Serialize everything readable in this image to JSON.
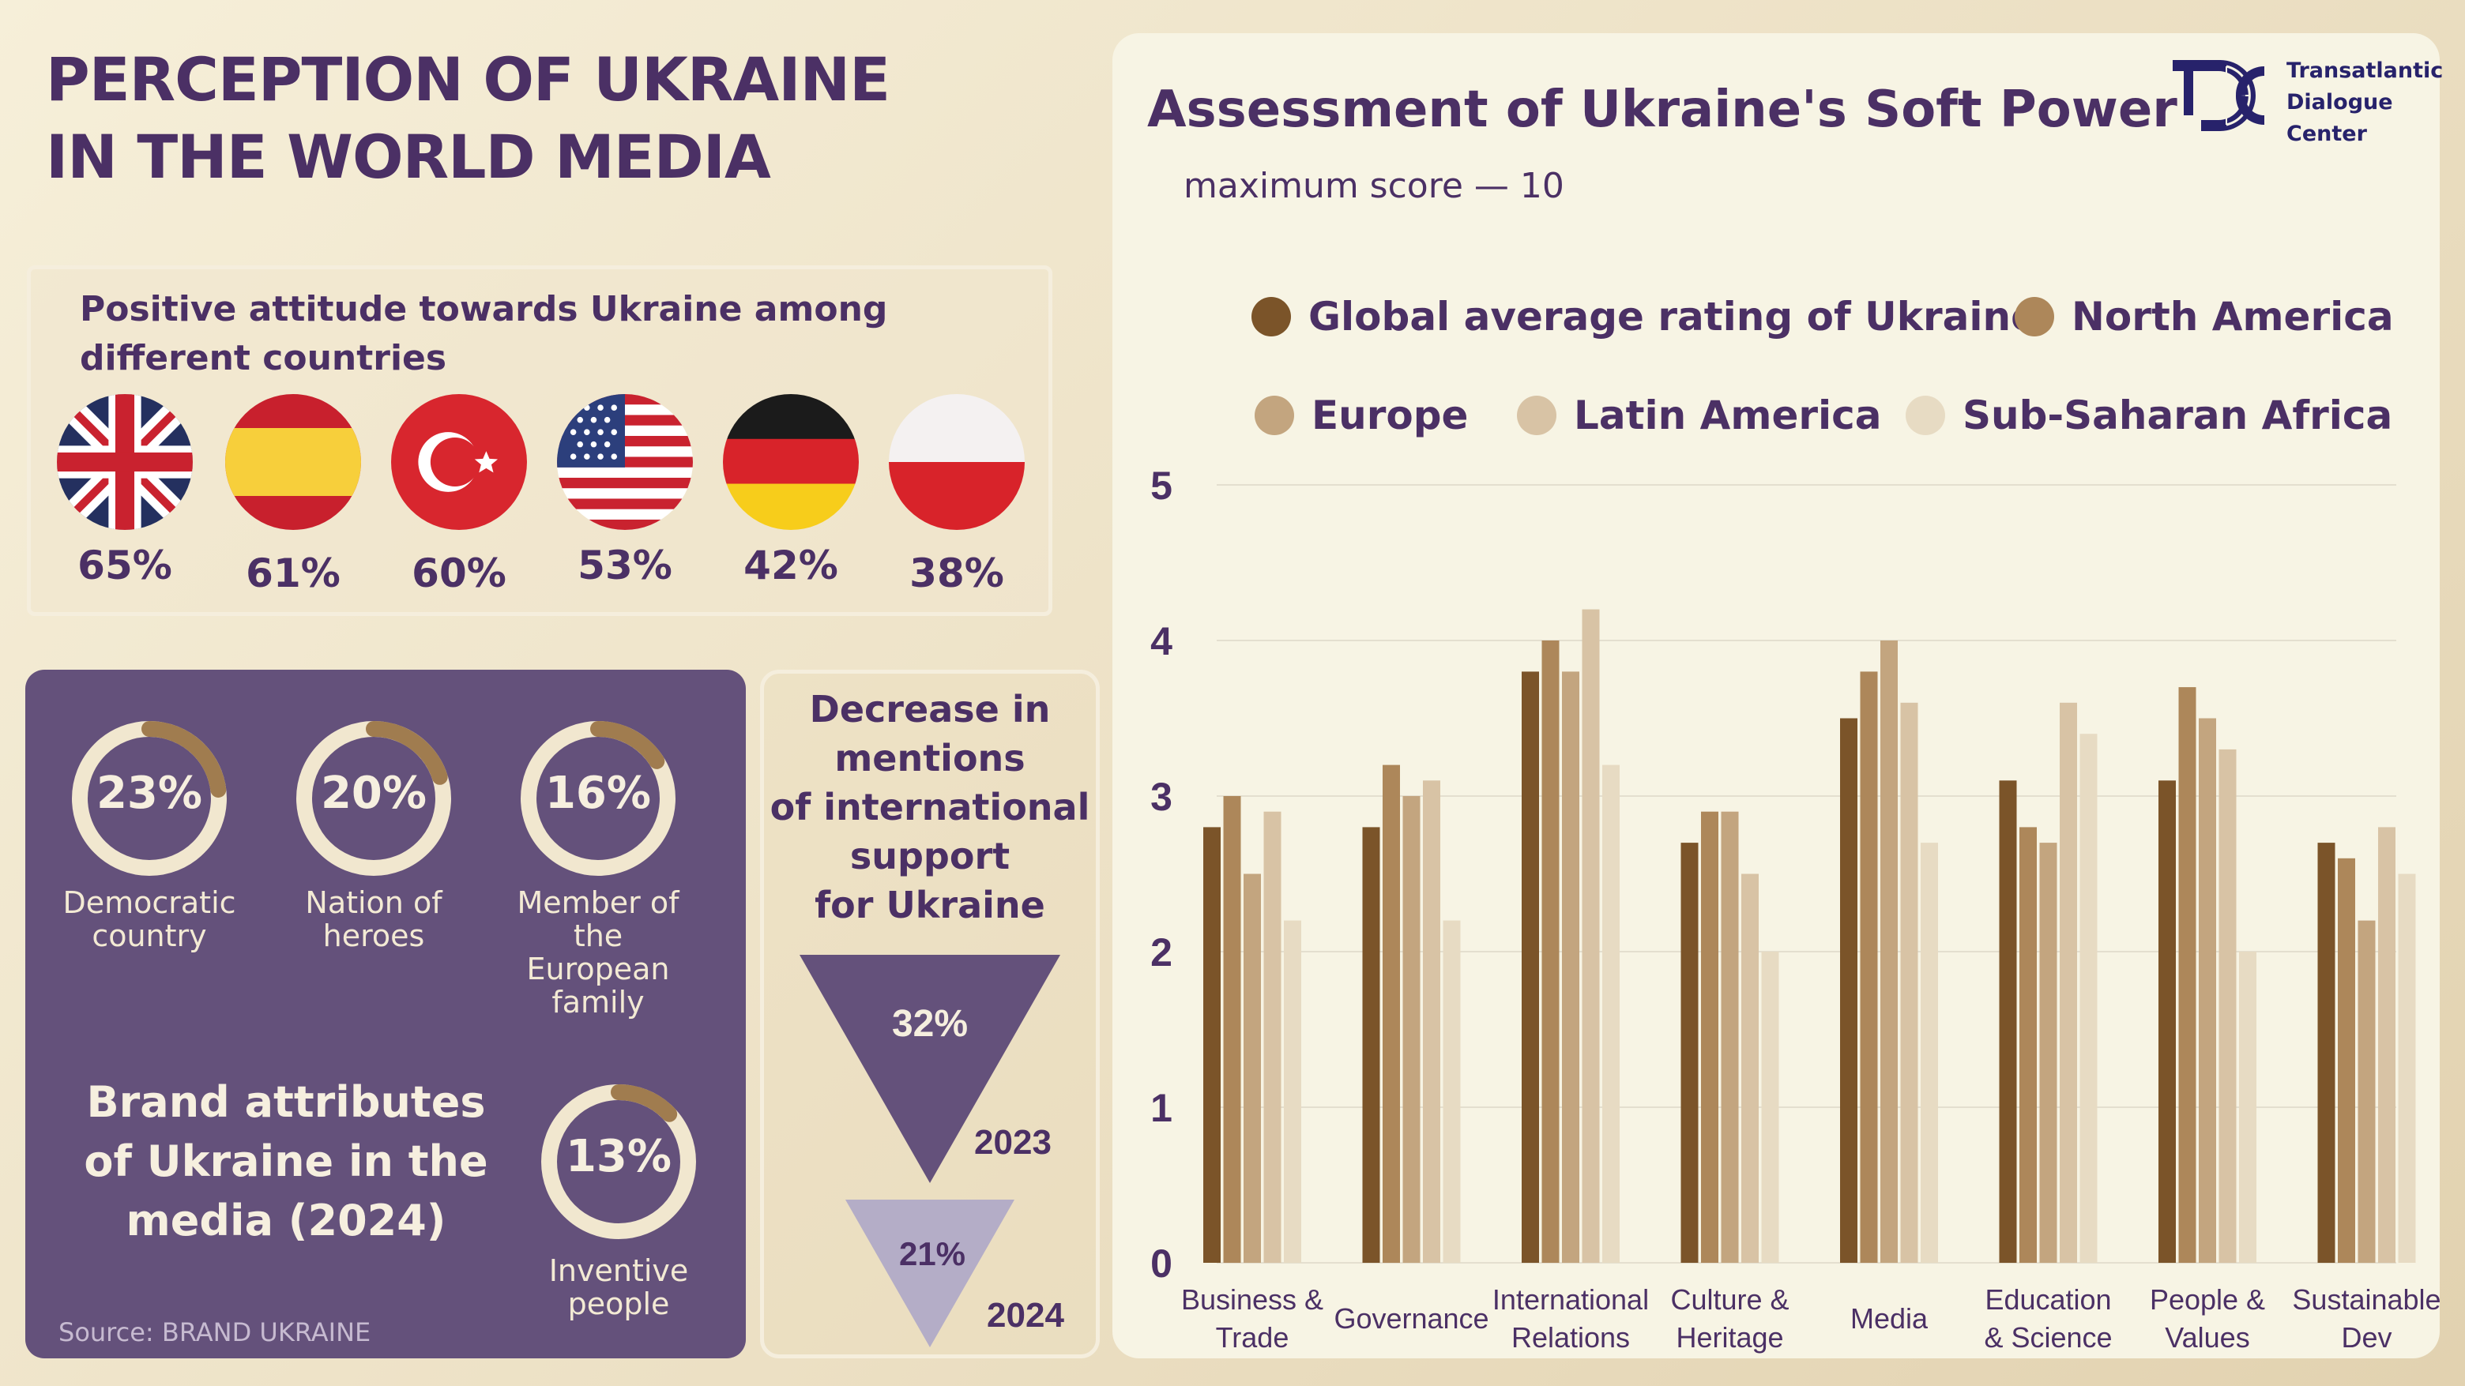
{
  "main_title": [
    "PERCEPTION OF UKRAINE",
    "IN THE WORLD MEDIA"
  ],
  "attitude": {
    "title": "Positive attitude towards Ukraine among different countries",
    "countries": [
      {
        "flag": "uk-flag-icon",
        "percent": "65%"
      },
      {
        "flag": "spain-flag-icon",
        "percent": "61%"
      },
      {
        "flag": "turkey-flag-icon",
        "percent": "60%"
      },
      {
        "flag": "usa-flag-icon",
        "percent": "53%"
      },
      {
        "flag": "germany-flag-icon",
        "percent": "42%"
      },
      {
        "flag": "poland-flag-icon",
        "percent": "38%"
      }
    ]
  },
  "brand": {
    "title": "Brand attributes of Ukraine in the media (2024)",
    "attributes": [
      {
        "percent": "23%",
        "value": 0.23,
        "label": [
          "Democratic",
          "country"
        ]
      },
      {
        "percent": "20%",
        "value": 0.2,
        "label": [
          "Nation of",
          "heroes"
        ]
      },
      {
        "percent": "16%",
        "value": 0.16,
        "label": [
          "Member of",
          "the",
          "European",
          "family"
        ]
      },
      {
        "percent": "13%",
        "value": 0.13,
        "label": [
          "Inventive",
          "people"
        ]
      }
    ],
    "source": "Source: BRAND UKRAINE"
  },
  "decrease": {
    "title": [
      "Decrease in",
      "mentions",
      "of international",
      "support",
      "for Ukraine"
    ],
    "items": [
      {
        "percent": "32%",
        "year": "2023"
      },
      {
        "percent": "21%",
        "year": "2024"
      }
    ]
  },
  "logo": {
    "text": [
      "Transatlantic",
      "Dialogue",
      "Center"
    ]
  },
  "colors": {
    "purple": "#4b3065",
    "panel_purple": "#64517b",
    "series": [
      "#7b5429",
      "#ad875a",
      "#c3a57f",
      "#d8c3a5",
      "#e7dbc3"
    ]
  },
  "chart_data": {
    "type": "bar",
    "title": "Assessment of Ukraine's Soft Power",
    "subtitle": "maximum score — 10",
    "categories": [
      [
        "Business &",
        "Trade"
      ],
      [
        "Governance"
      ],
      [
        "International",
        "Relations"
      ],
      [
        "Culture &",
        "Heritage"
      ],
      [
        "Media"
      ],
      [
        "Education",
        "& Science"
      ],
      [
        "People &",
        "Values"
      ],
      [
        "Sustainable",
        "Dev"
      ]
    ],
    "series": [
      {
        "name": "Global average rating of Ukraine",
        "values": [
          2.8,
          2.8,
          3.8,
          2.7,
          3.5,
          3.1,
          3.1,
          2.7
        ]
      },
      {
        "name": "North America",
        "values": [
          3.0,
          3.2,
          4.0,
          2.9,
          3.8,
          2.8,
          3.7,
          2.6
        ]
      },
      {
        "name": "Europe",
        "values": [
          2.5,
          3.0,
          3.8,
          2.9,
          4.0,
          2.7,
          3.5,
          2.2
        ]
      },
      {
        "name": "Latin America",
        "values": [
          2.9,
          3.1,
          4.2,
          2.5,
          3.6,
          3.6,
          3.3,
          2.8
        ]
      },
      {
        "name": "Sub-Saharan Africa",
        "values": [
          2.2,
          2.2,
          3.2,
          2.0,
          2.7,
          3.4,
          2.0,
          2.5
        ]
      }
    ],
    "yticks": [
      "0",
      "1",
      "2",
      "3",
      "4",
      "5"
    ],
    "ylim": [
      0,
      5
    ],
    "grid": true,
    "legend": "top"
  }
}
